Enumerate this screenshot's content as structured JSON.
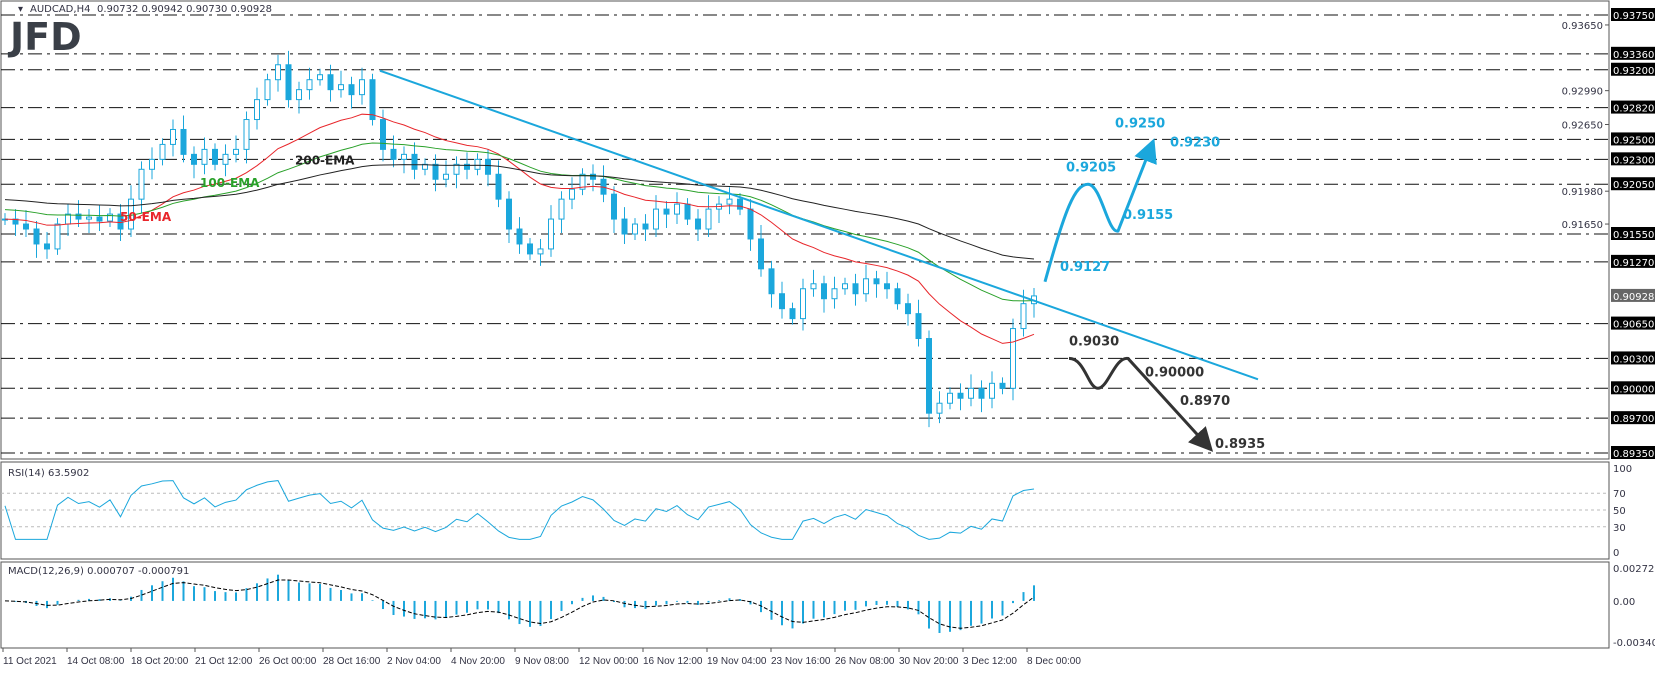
{
  "header": {
    "symbol": "AUDCAD,H4",
    "ohlc": "0.90732 0.90942 0.90730 0.90928"
  },
  "logo": "JFD",
  "colors": {
    "trend": "#1ba7dc",
    "ema50": "#e8262b",
    "ema100": "#2aa12a",
    "ema200": "#222222",
    "candle": "#1ba7dc",
    "bearish_path": "#333333"
  },
  "chart_data": {
    "type": "candlestick",
    "title": "AUDCAD,H4",
    "ylim": [
      0.8935,
      0.9375
    ],
    "closes": [
      0.917,
      0.9165,
      0.916,
      0.9145,
      0.914,
      0.9165,
      0.9175,
      0.917,
      0.9172,
      0.9168,
      0.9175,
      0.916,
      0.919,
      0.922,
      0.923,
      0.9245,
      0.926,
      0.9235,
      0.9225,
      0.924,
      0.9225,
      0.9235,
      0.924,
      0.927,
      0.929,
      0.931,
      0.9325,
      0.929,
      0.93,
      0.931,
      0.9315,
      0.93,
      0.9305,
      0.9295,
      0.931,
      0.927,
      0.924,
      0.923,
      0.9235,
      0.922,
      0.9225,
      0.921,
      0.9215,
      0.9225,
      0.922,
      0.923,
      0.9215,
      0.919,
      0.916,
      0.9145,
      0.9135,
      0.914,
      0.917,
      0.919,
      0.92,
      0.9215,
      0.921,
      0.9195,
      0.917,
      0.9155,
      0.9165,
      0.916,
      0.918,
      0.9175,
      0.9185,
      0.917,
      0.916,
      0.918,
      0.9185,
      0.919,
      0.918,
      0.915,
      0.912,
      0.9095,
      0.908,
      0.907,
      0.91,
      0.9105,
      0.909,
      0.91,
      0.9105,
      0.9095,
      0.911,
      0.9105,
      0.91,
      0.9085,
      0.9075,
      0.905,
      0.8975,
      0.8985,
      0.8995,
      0.899,
      0.9,
      0.899,
      0.9005,
      0.9,
      0.906,
      0.9085,
      0.90928
    ],
    "x_tick_labels": [
      "11 Oct 2021",
      "14 Oct 08:00",
      "18 Oct 20:00",
      "21 Oct 12:00",
      "26 Oct 00:00",
      "28 Oct 16:00",
      "2 Nov 04:00",
      "4 Nov 20:00",
      "9 Nov 08:00",
      "12 Nov 00:00",
      "16 Nov 12:00",
      "19 Nov 04:00",
      "23 Nov 16:00",
      "26 Nov 08:00",
      "30 Nov 20:00",
      "3 Dec 12:00",
      "8 Dec 00:00"
    ],
    "level_labels": [
      "0.93750",
      "0.93360",
      "0.93200",
      "0.92820",
      "0.92500",
      "0.92300",
      "0.92050",
      "0.91550",
      "0.91270",
      "0.90650",
      "0.90300",
      "0.90000",
      "0.89700",
      "0.89350"
    ],
    "axis_labels": [
      "0.93650",
      "0.92990",
      "0.92650",
      "0.91980",
      "0.91650"
    ],
    "current_price": "0.90928",
    "ema_labels": {
      "ema50": "50-EMA",
      "ema100": "100-EMA",
      "ema200": "200-EMA"
    },
    "trendline": {
      "start_price": 0.9319,
      "end_price": 0.9009
    },
    "bullish_scenario": [
      "0.9127",
      "0.9205",
      "0.9155",
      "0.9250",
      "0.9230"
    ],
    "bearish_scenario": [
      "0.9030",
      "0.90000",
      "0.8970",
      "0.8935"
    ],
    "rsi": {
      "label": "RSI(14) 63.5902",
      "ticks": [
        "100",
        "70",
        "50",
        "30",
        "0"
      ]
    },
    "macd": {
      "label": "MACD(12,26,9) 0.000707 -0.000791",
      "ticks": [
        "0.002726",
        "0.00",
        "-0.003403"
      ],
      "ylim": [
        -0.003403,
        0.002726
      ]
    }
  }
}
